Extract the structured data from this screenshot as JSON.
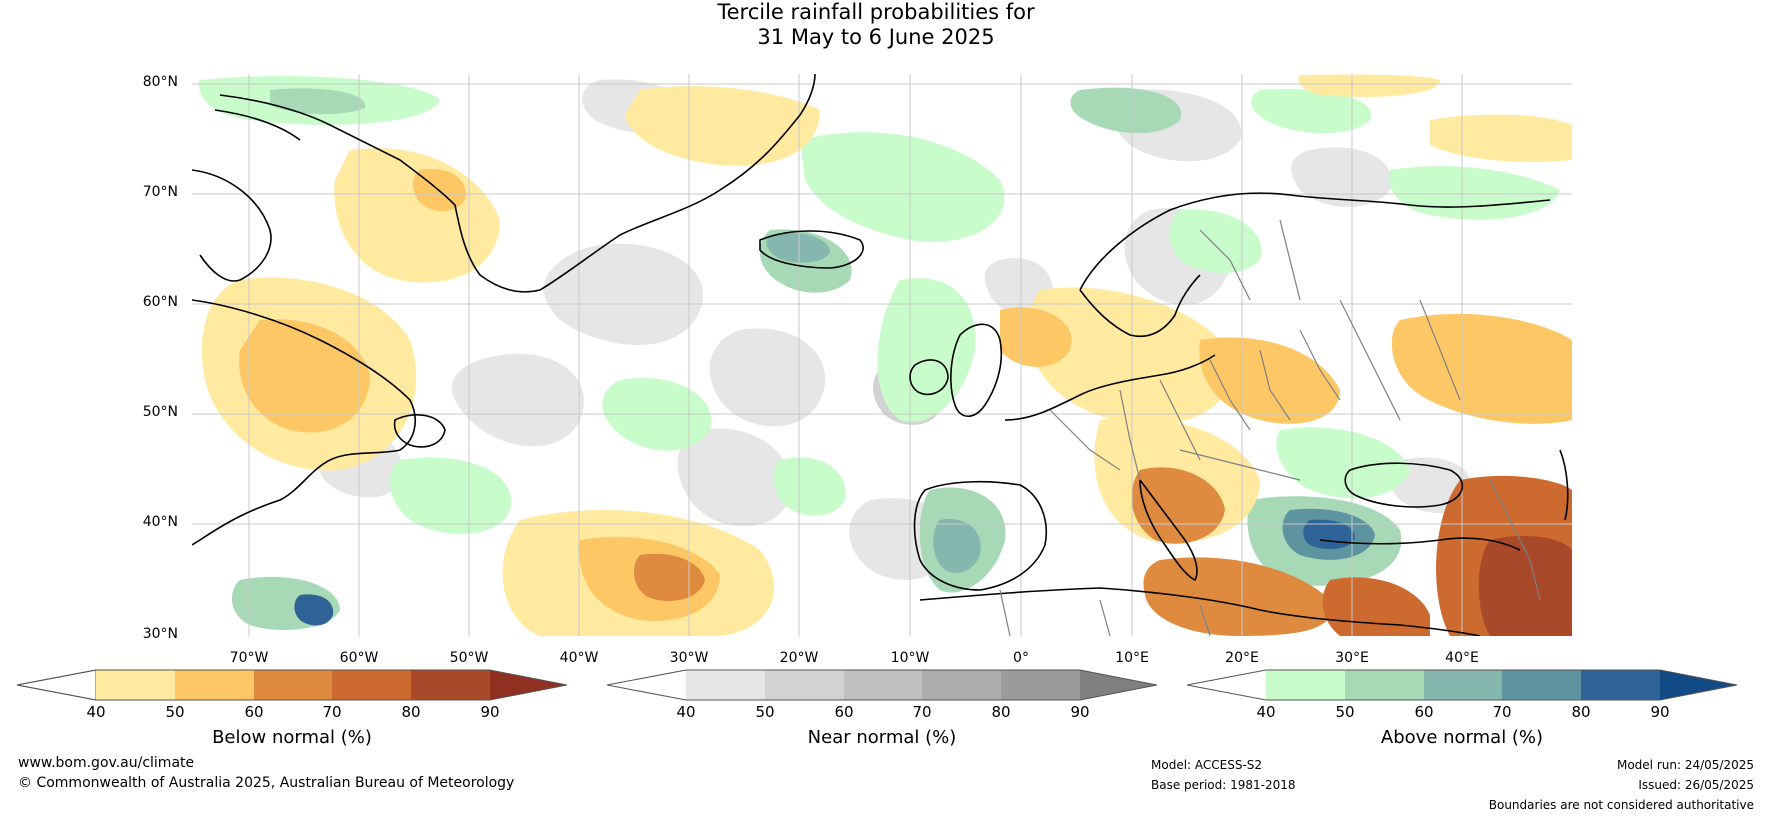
{
  "title": {
    "line1": "Tercile rainfall probabilities for",
    "line2": "31 May to 6 June 2025"
  },
  "map": {
    "lat_labels": [
      "80°N",
      "70°N",
      "60°N",
      "50°N",
      "40°N",
      "30°N"
    ],
    "lon_labels": [
      "70°W",
      "60°W",
      "50°W",
      "40°W",
      "30°W",
      "20°W",
      "10°W",
      "0°",
      "10°E",
      "20°E",
      "30°E",
      "40°E"
    ],
    "colors": {
      "land_outline": "#000000",
      "borders": "#808080",
      "graticule": "#c8c8c8"
    }
  },
  "colorbars": [
    {
      "id": "below",
      "label": "Below normal (%)",
      "ticks": [
        "40",
        "50",
        "60",
        "70",
        "80",
        "90"
      ],
      "colors": [
        "#ffffff",
        "#ffeaa0",
        "#fdc765",
        "#de8b3f",
        "#cc6a30",
        "#a84a2a",
        "#8f3020"
      ]
    },
    {
      "id": "near",
      "label": "Near normal (%)",
      "ticks": [
        "40",
        "50",
        "60",
        "70",
        "80",
        "90"
      ],
      "colors": [
        "#ffffff",
        "#e6e6e6",
        "#d2d2d2",
        "#bfbfbf",
        "#adadad",
        "#9b9b9b",
        "#7f7f7f"
      ]
    },
    {
      "id": "above",
      "label": "Above normal (%)",
      "ticks": [
        "40",
        "50",
        "60",
        "70",
        "80",
        "90"
      ],
      "colors": [
        "#ffffff",
        "#c8fccb",
        "#a7d9b6",
        "#85b7ae",
        "#5e93a0",
        "#2f6296",
        "#124a85"
      ]
    }
  ],
  "footer": {
    "website": "www.bom.gov.au/climate",
    "copyright": "© Commonwealth of Australia 2025, Australian Bureau of Meteorology",
    "model": "Model: ACCESS-S2",
    "base_period": "Base period: 1981-2018",
    "model_run": "Model run: 24/05/2025",
    "issued": "Issued: 26/05/2025",
    "disclaimer": "Boundaries are not considered authoritative"
  }
}
